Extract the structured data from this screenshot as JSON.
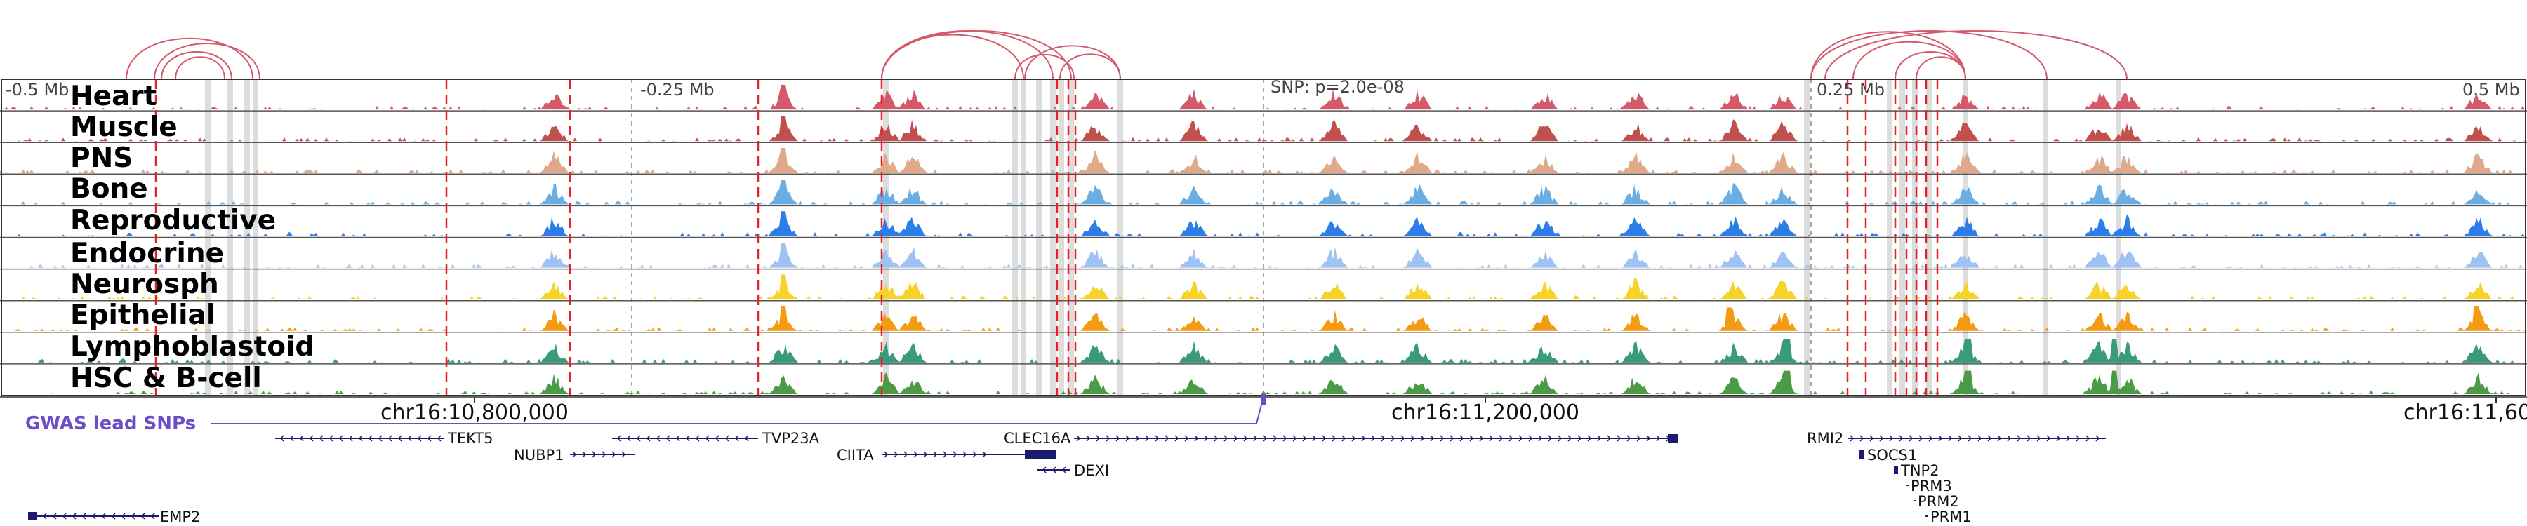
{
  "ruler": {
    "labels": [
      "-0.5 Mb",
      "-0.25 Mb",
      "SNP: p=2.0e-08",
      "0.25 Mb",
      "0.5 Mb"
    ]
  },
  "tracks": [
    {
      "name": "Heart",
      "color": "#d4596b"
    },
    {
      "name": "Muscle",
      "color": "#c0504d"
    },
    {
      "name": "PNS",
      "color": "#e0aa8a"
    },
    {
      "name": "Bone",
      "color": "#6aaee4"
    },
    {
      "name": "Reproductive",
      "color": "#2b7de9"
    },
    {
      "name": "Endocrine",
      "color": "#9ec3f2"
    },
    {
      "name": "Neurosph",
      "color": "#f7d328"
    },
    {
      "name": "Epithelial",
      "color": "#f59a13"
    },
    {
      "name": "Lymphoblastoid",
      "color": "#3a9a7c"
    },
    {
      "name": "HSC & B-cell",
      "color": "#4a9a46"
    }
  ],
  "coordinates": [
    "chr16:10,800,000",
    "chr16:11,200,000",
    "chr16:11,60"
  ],
  "gwas": {
    "label": "GWAS lead SNPs",
    "color": "#6a4fc8"
  },
  "genes": [
    {
      "name": "TEKT5",
      "strand": "-"
    },
    {
      "name": "NUBP1",
      "strand": "+"
    },
    {
      "name": "TVP23A",
      "strand": "-"
    },
    {
      "name": "CIITA",
      "strand": "+"
    },
    {
      "name": "CLEC16A",
      "strand": "+"
    },
    {
      "name": "DEXI",
      "strand": "-"
    },
    {
      "name": "RMI2",
      "strand": "+"
    },
    {
      "name": "SOCS1",
      "strand": "-"
    },
    {
      "name": "TNP2",
      "strand": "-"
    },
    {
      "name": "PRM3",
      "strand": "-"
    },
    {
      "name": "PRM2",
      "strand": "-"
    },
    {
      "name": "PRM1",
      "strand": "-"
    },
    {
      "name": "EMP2",
      "strand": "-"
    }
  ],
  "colors": {
    "loop": "#d4596b",
    "highlight_red": "#e8202a",
    "highlight_gray": "#cfcfcf",
    "gene_body": "#1a1a6e",
    "axis": "#333333"
  }
}
